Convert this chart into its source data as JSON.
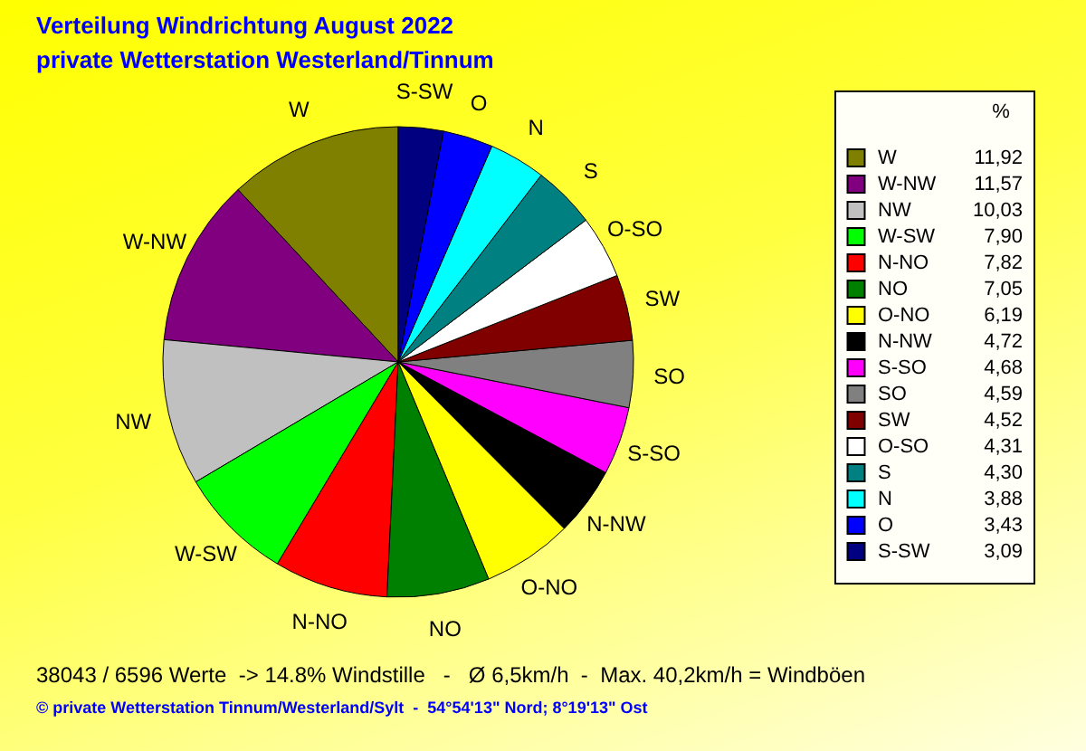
{
  "chart_data": {
    "type": "pie",
    "title": "Verteilung Windrichtung   August 2022",
    "subtitle": "private Wetterstation Westerland/Tinnum",
    "legend_title": "%",
    "legend": "right",
    "categories": [
      "W",
      "W-NW",
      "NW",
      "W-SW",
      "N-NO",
      "NO",
      "O-NO",
      "N-NW",
      "S-SO",
      "SO",
      "SW",
      "O-SO",
      "S",
      "N",
      "O",
      "S-SW"
    ],
    "values": [
      11.92,
      11.57,
      10.03,
      7.9,
      7.82,
      7.05,
      6.19,
      4.72,
      4.68,
      4.59,
      4.52,
      4.31,
      4.3,
      3.88,
      3.43,
      3.09
    ],
    "value_labels": [
      "11,92",
      "11,57",
      "10,03",
      "7,90",
      "7,82",
      "7,05",
      "6,19",
      "4,72",
      "4,68",
      "4,59",
      "4,52",
      "4,31",
      "4,30",
      "3,88",
      "3,43",
      "3,09"
    ],
    "colors": [
      "#808000",
      "#800080",
      "#c0c0c0",
      "#00ff00",
      "#ff0000",
      "#008000",
      "#ffff00",
      "#000000",
      "#ff00ff",
      "#808080",
      "#800000",
      "#ffffff",
      "#008080",
      "#00ffff",
      "#0000ff",
      "#000080"
    ],
    "annotations": [
      "38043 / 6596 Werte  -> 14.8% Windstille   -   Ø 6,5km/h  -  Max. 40,2km/h = Windböen",
      "© private Wetterstation Tinnum/Westerland/Sylt  -  54°54'13\" Nord; 8°19'13\" Ost"
    ]
  }
}
